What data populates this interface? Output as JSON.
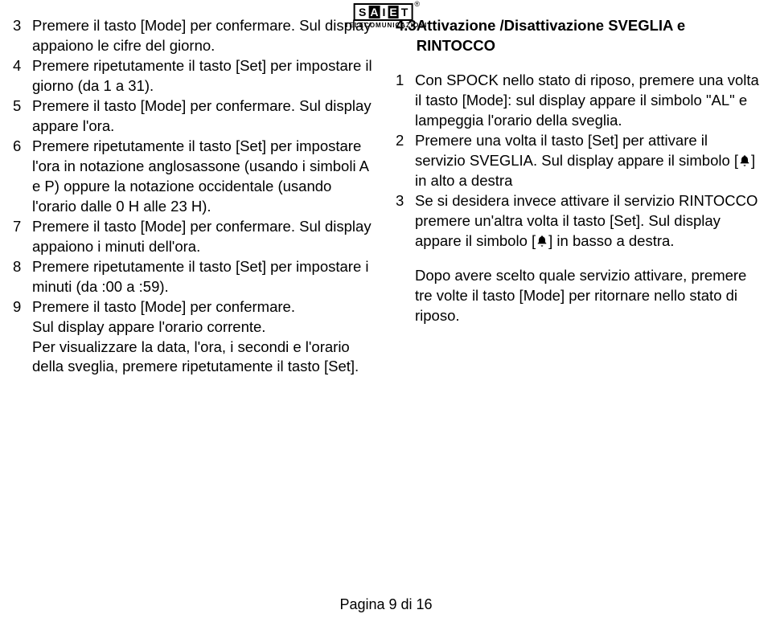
{
  "logo": {
    "letters": [
      "S",
      "A",
      "I",
      "E",
      "T"
    ],
    "sub": "TELECOMUNICAZIONI"
  },
  "left": [
    {
      "n": "3",
      "t": "Premere il tasto [Mode] per confermare. Sul display appaiono le cifre del giorno."
    },
    {
      "n": "4",
      "t": "Premere ripetutamente il tasto [Set] per impostare il giorno (da 1 a 31)."
    },
    {
      "n": "5",
      "t": "Premere il tasto [Mode] per confermare. Sul display appare l'ora."
    },
    {
      "n": "6",
      "t": "Premere ripetutamente il tasto [Set] per impostare l'ora in notazione anglosassone (usando i simboli A e P) oppure la notazione occidentale (usando l'orario dalle 0 H alle 23 H)."
    },
    {
      "n": "7",
      "t": "Premere il tasto [Mode] per confermare. Sul display appaiono i minuti dell'ora."
    },
    {
      "n": "8",
      "t": "Premere ripetutamente il tasto [Set] per impostare i minuti (da :00 a :59)."
    },
    {
      "n": "9",
      "t": "Premere il tasto [Mode] per confermare."
    },
    {
      "n": "",
      "t": "Sul display appare l'orario corrente."
    },
    {
      "n": "",
      "t": "Per visualizzare la data, l'ora, i secondi e l'orario della sveglia, premere ripetutamente il tasto [Set]."
    }
  ],
  "rightHeading": {
    "n": "4.3",
    "t": "Attivazione /Disattivazione SVEGLIA e RINTOCCO"
  },
  "right": [
    {
      "n": "1",
      "t": "Con SPOCK nello stato di riposo, premere una volta il tasto [Mode]: sul display appare il simbolo \"AL\" e lampeggia l'orario della sveglia."
    },
    {
      "n": "2",
      "pre": "Premere una volta il tasto [Set] per attivare il servizio SVEGLIA. Sul display appare il simbolo [",
      "post": "] in alto a destra"
    },
    {
      "n": "3",
      "pre": "Se si desidera invece attivare il servizio RINTOCCO premere un'altra volta il tasto [Set]. Sul display appare il simbolo [",
      "post": "] in basso a destra."
    }
  ],
  "rightFooter": "Dopo avere scelto quale servizio attivare, premere tre volte il tasto [Mode] per ritornare nello stato di riposo.",
  "pageFooter": "Pagina 9 di 16"
}
